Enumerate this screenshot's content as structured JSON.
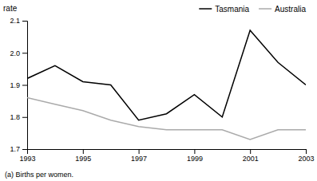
{
  "chart_data": {
    "type": "line",
    "y_label": "rate",
    "annotations": [
      "(a) Births per women."
    ],
    "x": [
      1993,
      1994,
      1995,
      1996,
      1997,
      1998,
      1999,
      2000,
      2001,
      2002,
      2003
    ],
    "series": [
      {
        "name": "Tasmania",
        "color": "#000000",
        "values": [
          1.92,
          1.96,
          1.91,
          1.9,
          1.79,
          1.81,
          1.87,
          1.8,
          2.07,
          1.97,
          1.9
        ]
      },
      {
        "name": "Australia",
        "color": "#aaaaaa",
        "values": [
          1.86,
          1.84,
          1.82,
          1.79,
          1.77,
          1.76,
          1.76,
          1.76,
          1.73,
          1.76,
          1.76
        ]
      }
    ],
    "xlim": [
      1993,
      2003
    ],
    "xticks": [
      1993,
      1995,
      1997,
      1999,
      2001,
      2003
    ],
    "ylim": [
      1.7,
      2.1
    ],
    "yticks": [
      1.7,
      1.8,
      1.9,
      {
        "value": 2,
        "label": "2.0"
      },
      2.1
    ],
    "grid": false,
    "legend": "top-right"
  }
}
